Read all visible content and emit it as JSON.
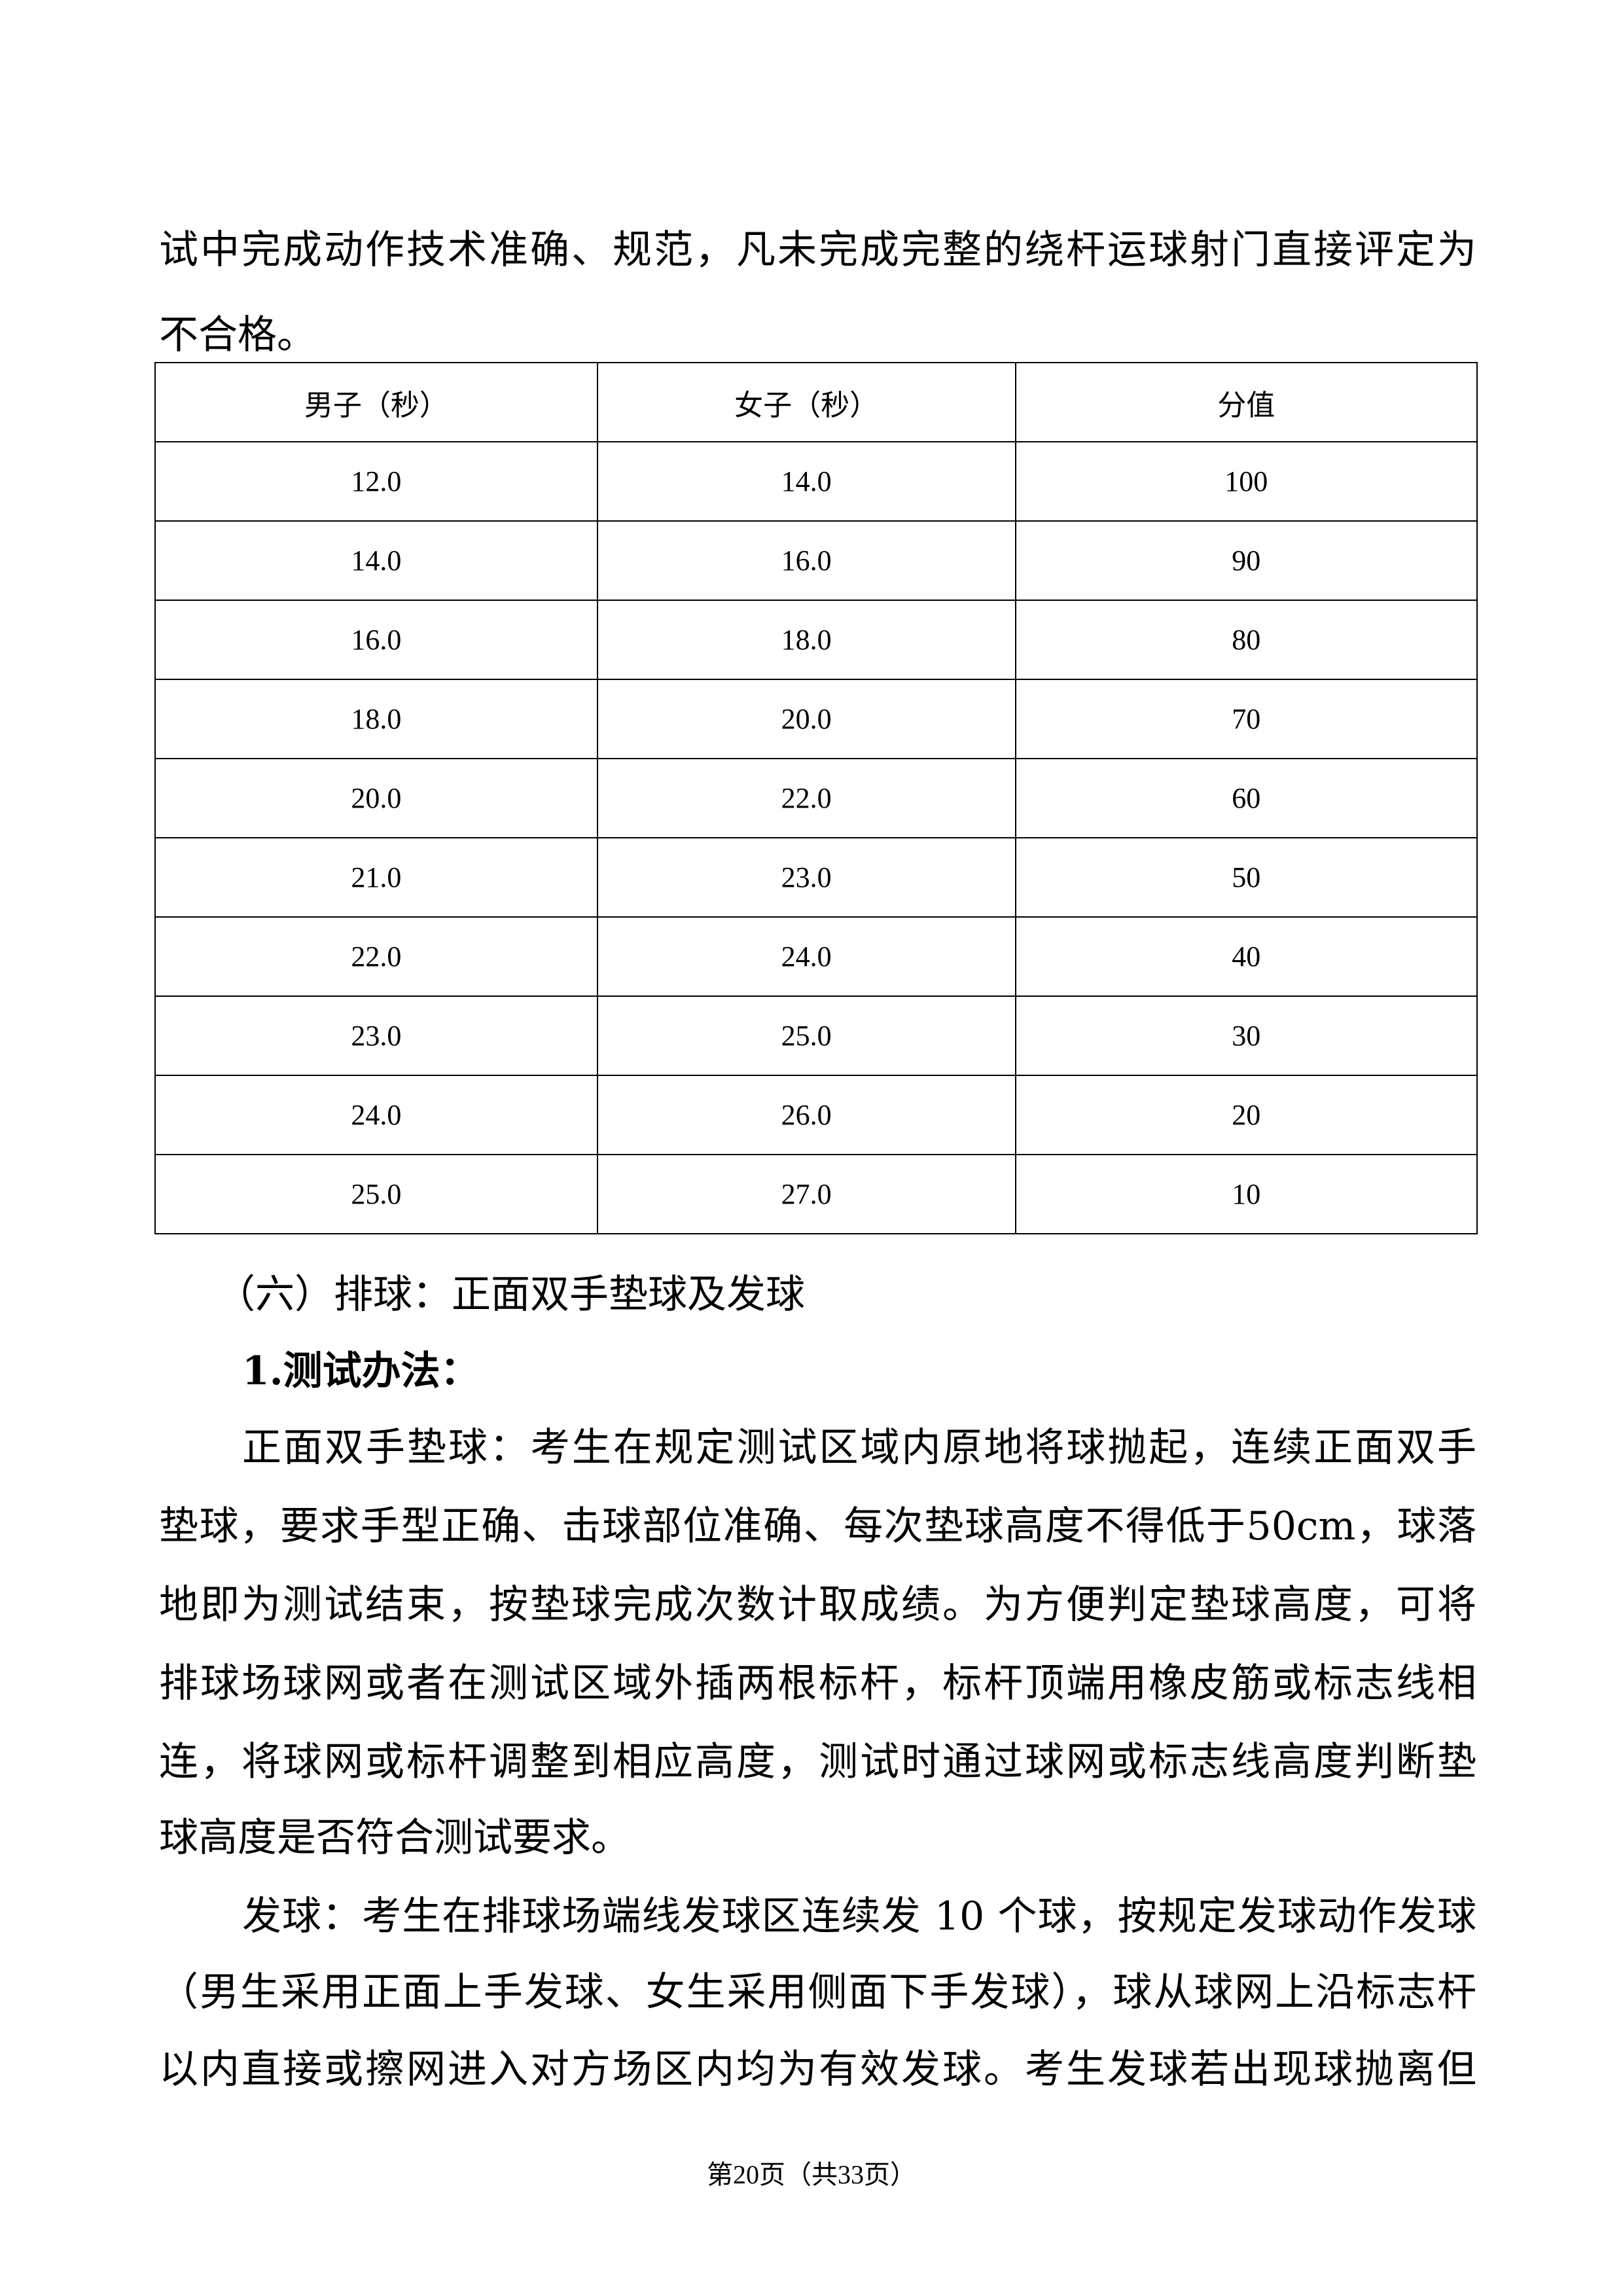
{
  "intro_lines": [
    "试中完成动作技术准确、规范，凡未完成完整的绕杆运球射门直接评定为",
    "不合格。"
  ],
  "table": {
    "headers": [
      "男子（秒）",
      "女子（秒）",
      "分值"
    ],
    "rows": [
      [
        "12.0",
        "14.0",
        "100"
      ],
      [
        "14.0",
        "16.0",
        "90"
      ],
      [
        "16.0",
        "18.0",
        "80"
      ],
      [
        "18.0",
        "20.0",
        "70"
      ],
      [
        "20.0",
        "22.0",
        "60"
      ],
      [
        "21.0",
        "23.0",
        "50"
      ],
      [
        "22.0",
        "24.0",
        "40"
      ],
      [
        "23.0",
        "25.0",
        "30"
      ],
      [
        "24.0",
        "26.0",
        "20"
      ],
      [
        "25.0",
        "27.0",
        "10"
      ]
    ]
  },
  "section_heading": "（六）排球：正面双手垫球及发球",
  "sub_heading": "1.测试办法：",
  "para1_lines": [
    "正面双手垫球：考生在规定测试区域内原地将球抛起，连续正面双手",
    "垫球，要求手型正确、击球部位准确、每次垫球高度不得低于50cm，球落",
    "地即为测试结束，按垫球完成次数计取成绩。为方便判定垫球高度，可将",
    "排球场球网或者在测试区域外插两根标杆，标杆顶端用橡皮筋或标志线相",
    "连，将球网或标杆调整到相应高度，测试时通过球网或标志线高度判断垫",
    "球高度是否符合测试要求。"
  ],
  "para2_lines": [
    "发球：考生在排球场端线发球区连续发 10 个球，按规定发球动作发球",
    "（男生采用正面上手发球、女生采用侧面下手发球），球从球网上沿标志杆",
    "以内直接或擦网进入对方场区内均为有效发球。考生发球若出现球抛离但"
  ],
  "footer": "第20页（共33页）"
}
